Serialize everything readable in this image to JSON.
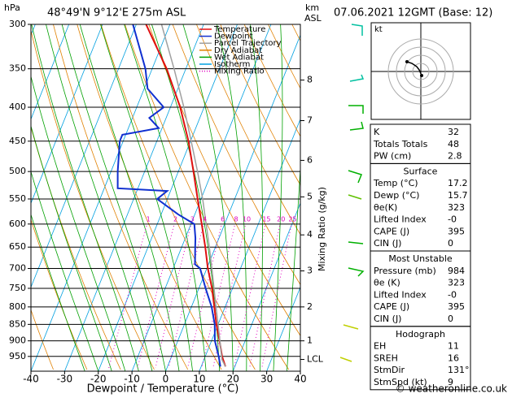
{
  "chart_data": {
    "type": "skewt",
    "y_unit": "hPa",
    "location": "48°49'N  9°12'E  275m ASL",
    "km_unit": [
      "km",
      "ASL"
    ],
    "x_title": "Dewpoint / Temperature (°C)",
    "y2_title": "Mixing Ratio (g/kg)",
    "xlim": [
      -40,
      40
    ],
    "xticks": [
      -40,
      -30,
      -20,
      -10,
      0,
      10,
      20,
      30,
      40
    ],
    "ylim": [
      300,
      1000
    ],
    "yticks": [
      300,
      350,
      400,
      450,
      500,
      550,
      600,
      650,
      700,
      750,
      800,
      850,
      900,
      950
    ],
    "log_y": true,
    "grid": true,
    "km_ticks": [
      {
        "value": 364,
        "label": "8"
      },
      {
        "value": 419,
        "label": "7"
      },
      {
        "value": 481,
        "label": "6"
      },
      {
        "value": 546,
        "label": "5"
      },
      {
        "value": 623,
        "label": "4"
      },
      {
        "value": 706,
        "label": "3"
      },
      {
        "value": 800,
        "label": "2"
      },
      {
        "value": 900,
        "label": "1"
      },
      {
        "value": 960,
        "label": "LCL"
      }
    ],
    "series": [
      {
        "name": "Temperature",
        "color": "#e01010",
        "width": 2,
        "p": [
          984,
          950,
          900,
          850,
          800,
          750,
          700,
          650,
          600,
          550,
          500,
          450,
          400,
          350,
          300
        ],
        "values": [
          17.2,
          15,
          12.4,
          9.5,
          6.8,
          3.9,
          0.3,
          -3,
          -6.8,
          -11,
          -15.5,
          -20.6,
          -27.1,
          -35.7,
          -47.1
        ]
      },
      {
        "name": "Dewpoint",
        "color": "#1030d0",
        "width": 2,
        "p": [
          984,
          950,
          900,
          850,
          800,
          750,
          700,
          690,
          650,
          630,
          600,
          580,
          550,
          535,
          530,
          500,
          450,
          440,
          430,
          415,
          400,
          375,
          350,
          300
        ],
        "values": [
          15.7,
          14,
          11,
          9,
          6,
          2,
          -2,
          -4,
          -6,
          -7,
          -9,
          -15,
          -23,
          -21,
          -36,
          -38,
          -41,
          -41,
          -31,
          -35,
          -32,
          -39,
          -42,
          -51
        ]
      },
      {
        "name": "Parcel Trajectory",
        "color": "#a0a0a0",
        "width": 1.5,
        "p": [
          984,
          960,
          900,
          850,
          800,
          750,
          700,
          650,
          600,
          550,
          500,
          450,
          400,
          350,
          300
        ],
        "values": [
          17.2,
          15.3,
          12.5,
          10,
          7.3,
          4.5,
          1.5,
          -1.8,
          -5.5,
          -9.5,
          -14.3,
          -19.8,
          -26,
          -33.5,
          -42.5
        ]
      }
    ],
    "reference_lines": [
      {
        "name": "Dry Adiabat",
        "color": "#e08000"
      },
      {
        "name": "Wet Adiabat",
        "color": "#00a000"
      },
      {
        "name": "Isotherm",
        "color": "#00a0e0"
      },
      {
        "name": "Mixing Ratio",
        "color": "#e000c0"
      }
    ],
    "mixing_ratio": [
      1,
      2,
      3,
      4,
      6,
      8,
      10,
      15,
      20,
      25
    ]
  },
  "hodograph": {
    "unit": "kt"
  },
  "panel": {
    "header": "07.06.2021 12GMT (Base: 12)",
    "indices": [
      [
        "K",
        "32"
      ],
      [
        "Totals Totals",
        "48"
      ],
      [
        "PW (cm)",
        "2.8"
      ]
    ],
    "sections": [
      {
        "title": "Surface",
        "rows": [
          [
            "Temp (°C)",
            "17.2"
          ],
          [
            "Dewp (°C)",
            "15.7"
          ],
          [
            "θe(K)",
            "323"
          ],
          [
            "Lifted Index",
            "-0"
          ],
          [
            "CAPE (J)",
            "395"
          ],
          [
            "CIN (J)",
            "0"
          ]
        ]
      },
      {
        "title": "Most Unstable",
        "rows": [
          [
            "Pressure (mb)",
            "984"
          ],
          [
            "θe (K)",
            "323"
          ],
          [
            "Lifted Index",
            "-0"
          ],
          [
            "CAPE (J)",
            "395"
          ],
          [
            "CIN (J)",
            "0"
          ]
        ]
      },
      {
        "title": "Hodograph",
        "rows": [
          [
            "EH",
            "11"
          ],
          [
            "SREH",
            "16"
          ],
          [
            "StmDir",
            "131°"
          ],
          [
            "StmSpd (kt)",
            "9"
          ]
        ]
      }
    ],
    "footer": "© weatheronline.co.uk"
  }
}
